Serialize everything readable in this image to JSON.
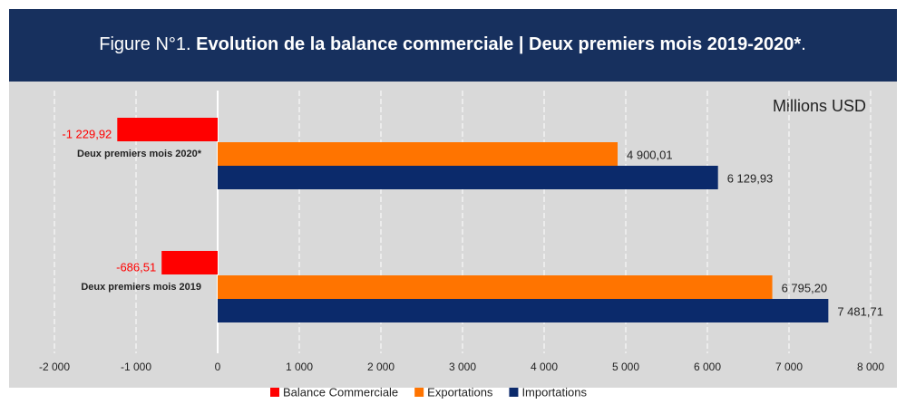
{
  "chart_data": {
    "type": "hbar",
    "title": [
      "Figure N°1. ",
      "Evolution de la balance commerciale | Deux premiers mois 2019-2020*",
      "."
    ],
    "unit_label": "Millions USD",
    "categories": [
      "Deux premiers mois 2020*",
      "Deux premiers mois 2019"
    ],
    "series": [
      {
        "name": "Balance Commerciale",
        "color": "#ff0000",
        "values": [
          -1229.92,
          -686.51
        ],
        "value_labels": [
          "-1 229,92",
          "-686,51"
        ]
      },
      {
        "name": "Exportations",
        "color": "#ff7400",
        "values": [
          4900.01,
          6795.2
        ],
        "value_labels": [
          "4 900,01",
          "6 795,20"
        ]
      },
      {
        "name": "Importations",
        "color": "#0b2a6b",
        "values": [
          6129.93,
          7481.71
        ],
        "value_labels": [
          "6 129,93",
          "7 481,71"
        ]
      }
    ],
    "xlim": [
      -2000,
      8000
    ],
    "xticks": [
      {
        "value": -2000,
        "label": "-2 000"
      },
      {
        "value": -1000,
        "label": "-1 000"
      },
      0,
      {
        "value": 1000,
        "label": "1 000"
      },
      {
        "value": 2000,
        "label": "2 000"
      },
      {
        "value": 3000,
        "label": "3 000"
      },
      {
        "value": 4000,
        "label": "4 000"
      },
      {
        "value": 5000,
        "label": "5 000"
      },
      {
        "value": 6000,
        "label": "6 000"
      },
      {
        "value": 7000,
        "label": "7 000"
      },
      {
        "value": 8000,
        "label": "8 000"
      }
    ],
    "grid": true,
    "legend": "bottom"
  }
}
